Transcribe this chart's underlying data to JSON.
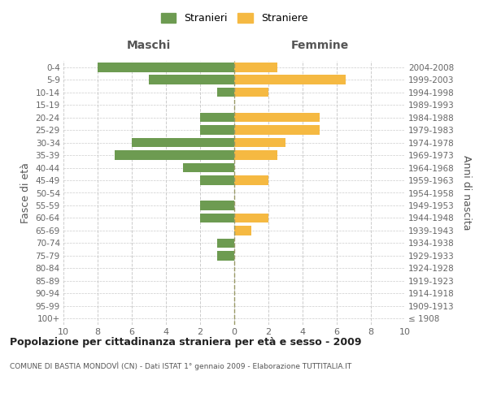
{
  "age_groups": [
    "100+",
    "95-99",
    "90-94",
    "85-89",
    "80-84",
    "75-79",
    "70-74",
    "65-69",
    "60-64",
    "55-59",
    "50-54",
    "45-49",
    "40-44",
    "35-39",
    "30-34",
    "25-29",
    "20-24",
    "15-19",
    "10-14",
    "5-9",
    "0-4"
  ],
  "birth_years": [
    "≤ 1908",
    "1909-1913",
    "1914-1918",
    "1919-1923",
    "1924-1928",
    "1929-1933",
    "1934-1938",
    "1939-1943",
    "1944-1948",
    "1949-1953",
    "1954-1958",
    "1959-1963",
    "1964-1968",
    "1969-1973",
    "1974-1978",
    "1979-1983",
    "1984-1988",
    "1989-1993",
    "1994-1998",
    "1999-2003",
    "2004-2008"
  ],
  "males": [
    0,
    0,
    0,
    0,
    0,
    1,
    1,
    0,
    2,
    2,
    0,
    2,
    3,
    7,
    6,
    2,
    2,
    0,
    1,
    5,
    8
  ],
  "females": [
    0,
    0,
    0,
    0,
    0,
    0,
    0,
    1,
    2,
    0,
    0,
    2,
    0,
    2.5,
    3,
    5,
    5,
    0,
    2,
    6.5,
    2.5
  ],
  "male_color": "#6d9b51",
  "female_color": "#f5b942",
  "title": "Popolazione per cittadinanza straniera per età e sesso - 2009",
  "subtitle": "COMUNE DI BASTIA MONDOVÌ (CN) - Dati ISTAT 1° gennaio 2009 - Elaborazione TUTTITALIA.IT",
  "xlabel_left": "Maschi",
  "xlabel_right": "Femmine",
  "ylabel_left": "Fasce di età",
  "ylabel_right": "Anni di nascita",
  "legend_male": "Stranieri",
  "legend_female": "Straniere",
  "xlim": 10,
  "background_color": "#ffffff",
  "grid_color": "#cccccc",
  "center_line_color": "#999966"
}
